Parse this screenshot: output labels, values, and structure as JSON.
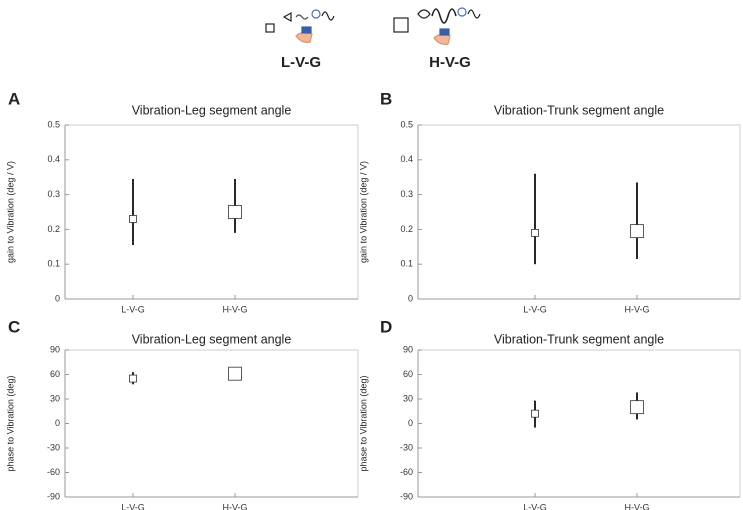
{
  "legend": [
    "L-V-G",
    "H-V-G"
  ],
  "chart_data": [
    {
      "type": "errorbar",
      "label": "A",
      "title": "Vibration-Leg segment angle",
      "y_label": "gain to Vibration (deg / V)",
      "categories": [
        "L-V-G",
        "H-V-G"
      ],
      "values": [
        0.23,
        0.25
      ],
      "lower": [
        0.155,
        0.19
      ],
      "upper": [
        0.345,
        0.345
      ],
      "ylim": [
        0,
        0.5
      ],
      "yticks": [
        0,
        0.1,
        0.2,
        0.3,
        0.4,
        0.5
      ]
    },
    {
      "type": "errorbar",
      "label": "B",
      "title": "Vibration-Trunk segment angle",
      "y_label": "gain to Vibration (deg / V)",
      "categories": [
        "L-V-G",
        "H-V-G"
      ],
      "values": [
        0.19,
        0.195
      ],
      "lower": [
        0.1,
        0.115
      ],
      "upper": [
        0.36,
        0.335
      ],
      "ylim": [
        0,
        0.5
      ],
      "yticks": [
        0,
        0.1,
        0.2,
        0.3,
        0.4,
        0.5
      ]
    },
    {
      "type": "errorbar",
      "label": "C",
      "title": "Vibration-Leg segment angle",
      "y_label": "phase to Vibration (deg)",
      "categories": [
        "L-V-G",
        "H-V-G"
      ],
      "values": [
        55,
        61
      ],
      "lower": [
        48,
        54
      ],
      "upper": [
        63,
        66
      ],
      "ylim": [
        -90,
        90
      ],
      "yticks": [
        -90,
        -60,
        -30,
        0,
        30,
        60,
        90
      ]
    },
    {
      "type": "errorbar",
      "label": "D",
      "title": "Vibration-Trunk segment angle",
      "y_label": "phase to Vibration (deg)",
      "categories": [
        "L-V-G",
        "H-V-G"
      ],
      "values": [
        12,
        20
      ],
      "lower": [
        -5,
        5
      ],
      "upper": [
        28,
        38
      ],
      "ylim": [
        -90,
        90
      ],
      "yticks": [
        -90,
        -60,
        -30,
        0,
        30,
        60,
        90
      ]
    }
  ]
}
